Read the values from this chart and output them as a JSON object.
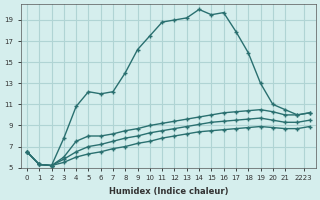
{
  "xlabel": "Humidex (Indice chaleur)",
  "ylabel": "",
  "background_color": "#d5eeed",
  "grid_color": "#b0d4d4",
  "line_color": "#2a7070",
  "x_values": [
    0,
    1,
    2,
    3,
    4,
    5,
    6,
    7,
    8,
    9,
    10,
    11,
    12,
    13,
    14,
    15,
    16,
    17,
    18,
    19,
    20,
    21,
    22,
    23
  ],
  "series1": [
    6.5,
    5.3,
    5.2,
    7.8,
    10.8,
    12.2,
    12.0,
    12.2,
    14.0,
    16.2,
    17.5,
    18.8,
    19.0,
    19.2,
    20.0,
    19.5,
    19.7,
    17.9,
    15.9,
    13.0,
    11.0,
    10.5,
    10.0,
    10.2
  ],
  "series2": [
    6.5,
    5.3,
    5.2,
    6.0,
    7.5,
    8.0,
    8.0,
    8.2,
    8.5,
    8.7,
    9.0,
    9.2,
    9.4,
    9.6,
    9.8,
    10.0,
    10.2,
    10.3,
    10.4,
    10.5,
    10.3,
    10.0,
    10.0,
    10.2
  ],
  "series3": [
    6.5,
    5.3,
    5.2,
    5.8,
    6.5,
    7.0,
    7.2,
    7.5,
    7.8,
    8.0,
    8.3,
    8.5,
    8.7,
    8.9,
    9.1,
    9.3,
    9.4,
    9.5,
    9.6,
    9.7,
    9.5,
    9.3,
    9.3,
    9.5
  ],
  "series4": [
    6.5,
    5.3,
    5.2,
    5.5,
    6.0,
    6.3,
    6.5,
    6.8,
    7.0,
    7.3,
    7.5,
    7.8,
    8.0,
    8.2,
    8.4,
    8.5,
    8.6,
    8.7,
    8.8,
    8.9,
    8.8,
    8.7,
    8.7,
    8.9
  ],
  "ylim": [
    5,
    20
  ],
  "xlim": [
    0,
    23
  ],
  "yticks": [
    5,
    7,
    9,
    11,
    13,
    15,
    17,
    19
  ],
  "xtick_positions": [
    0,
    1,
    2,
    3,
    4,
    5,
    6,
    7,
    8,
    9,
    10,
    11,
    12,
    13,
    14,
    15,
    16,
    17,
    18,
    19,
    20,
    21,
    22.5
  ],
  "xtick_labels": [
    "0",
    "1",
    "2",
    "3",
    "4",
    "5",
    "6",
    "7",
    "8",
    "9",
    "10",
    "11",
    "12",
    "13",
    "14",
    "15",
    "16",
    "17",
    "18",
    "19",
    "20",
    "21",
    "2223"
  ],
  "marker": "+"
}
